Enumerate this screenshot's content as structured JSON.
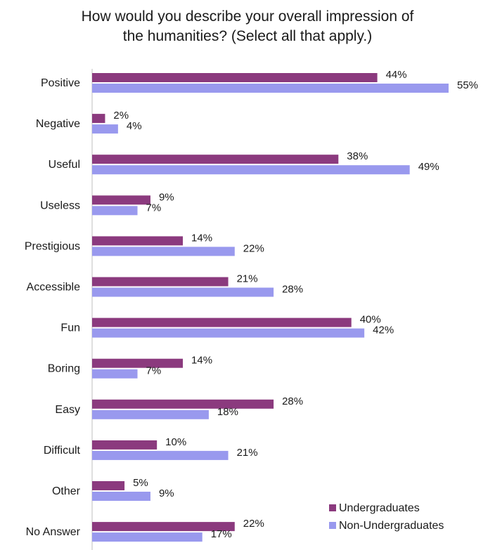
{
  "chart_data": {
    "type": "bar",
    "orientation": "horizontal",
    "title_lines": [
      "How would you describe your overall impression of",
      "the humanities? (Select all that apply.)"
    ],
    "categories": [
      "Positive",
      "Negative",
      "Useful",
      "Useless",
      "Prestigious",
      "Accessible",
      "Fun",
      "Boring",
      "Easy",
      "Difficult",
      "Other",
      "No Answer"
    ],
    "series": [
      {
        "name": "Undergraduates",
        "color": "#8B3A7E",
        "values": [
          44,
          2,
          38,
          9,
          14,
          21,
          40,
          14,
          28,
          10,
          5,
          22
        ],
        "labels": [
          "44%",
          "2%",
          "38%",
          "9%",
          "14%",
          "21%",
          "40%",
          "14%",
          "28%",
          "10%",
          "5%",
          "22%"
        ]
      },
      {
        "name": "Non-Undergraduates",
        "color": "#9999EE",
        "values": [
          55,
          4,
          49,
          7,
          22,
          28,
          42,
          7,
          18,
          21,
          9,
          17
        ],
        "labels": [
          "55%",
          "4%",
          "49%",
          "7%",
          "22%",
          "28%",
          "42%",
          "7%",
          "18%",
          "21%",
          "9%",
          "17%"
        ]
      }
    ],
    "xlim": [
      0,
      60
    ],
    "grid": false,
    "legend_position": "bottom-right"
  }
}
